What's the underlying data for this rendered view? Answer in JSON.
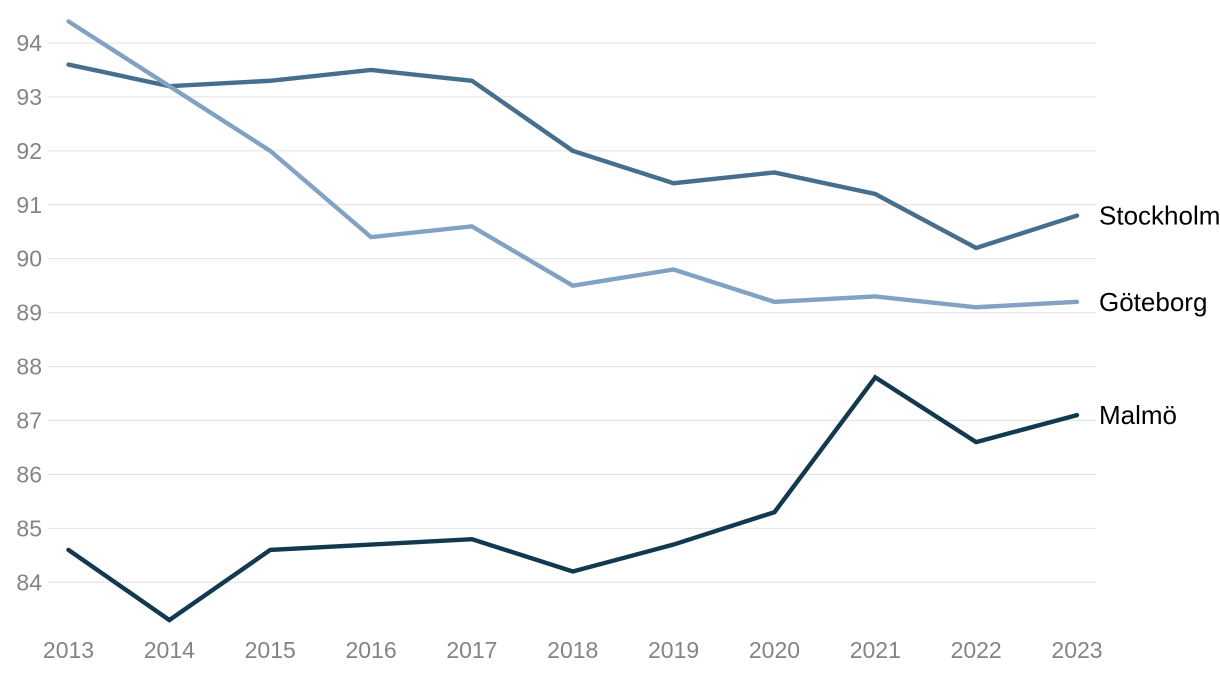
{
  "chart_data": {
    "type": "line",
    "title": "",
    "xlabel": "",
    "ylabel": "",
    "x": [
      2013,
      2014,
      2015,
      2016,
      2017,
      2018,
      2019,
      2020,
      2021,
      2022,
      2023
    ],
    "x_tick_labels": [
      "2013",
      "2014",
      "2015",
      "2016",
      "2017",
      "2018",
      "2019",
      "2020",
      "2021",
      "2022",
      "2023"
    ],
    "y_ticks": [
      84,
      85,
      86,
      87,
      88,
      89,
      90,
      91,
      92,
      93,
      94
    ],
    "ylim": [
      83.1,
      94.6
    ],
    "grid": "horizontal",
    "legend_position": "right-end-of-line",
    "series": [
      {
        "name": "Stockholm",
        "color": "#466e8d",
        "values": [
          93.6,
          93.2,
          93.3,
          93.5,
          93.3,
          92.0,
          91.4,
          91.6,
          91.2,
          90.2,
          90.8
        ]
      },
      {
        "name": "Göteborg",
        "color": "#82a2c4",
        "values": [
          94.4,
          93.2,
          92.0,
          90.4,
          90.6,
          89.5,
          89.8,
          89.2,
          89.3,
          89.1,
          89.2
        ]
      },
      {
        "name": "Malmö",
        "color": "#123950",
        "values": [
          84.6,
          83.3,
          84.6,
          84.7,
          84.8,
          84.2,
          84.7,
          85.3,
          87.8,
          86.6,
          87.1
        ]
      }
    ]
  },
  "styles": {
    "background_color": "#ffffff",
    "gridline_color": "#e0e0e0",
    "tick_label_color": "#828487",
    "series_label_color": "#000000"
  }
}
